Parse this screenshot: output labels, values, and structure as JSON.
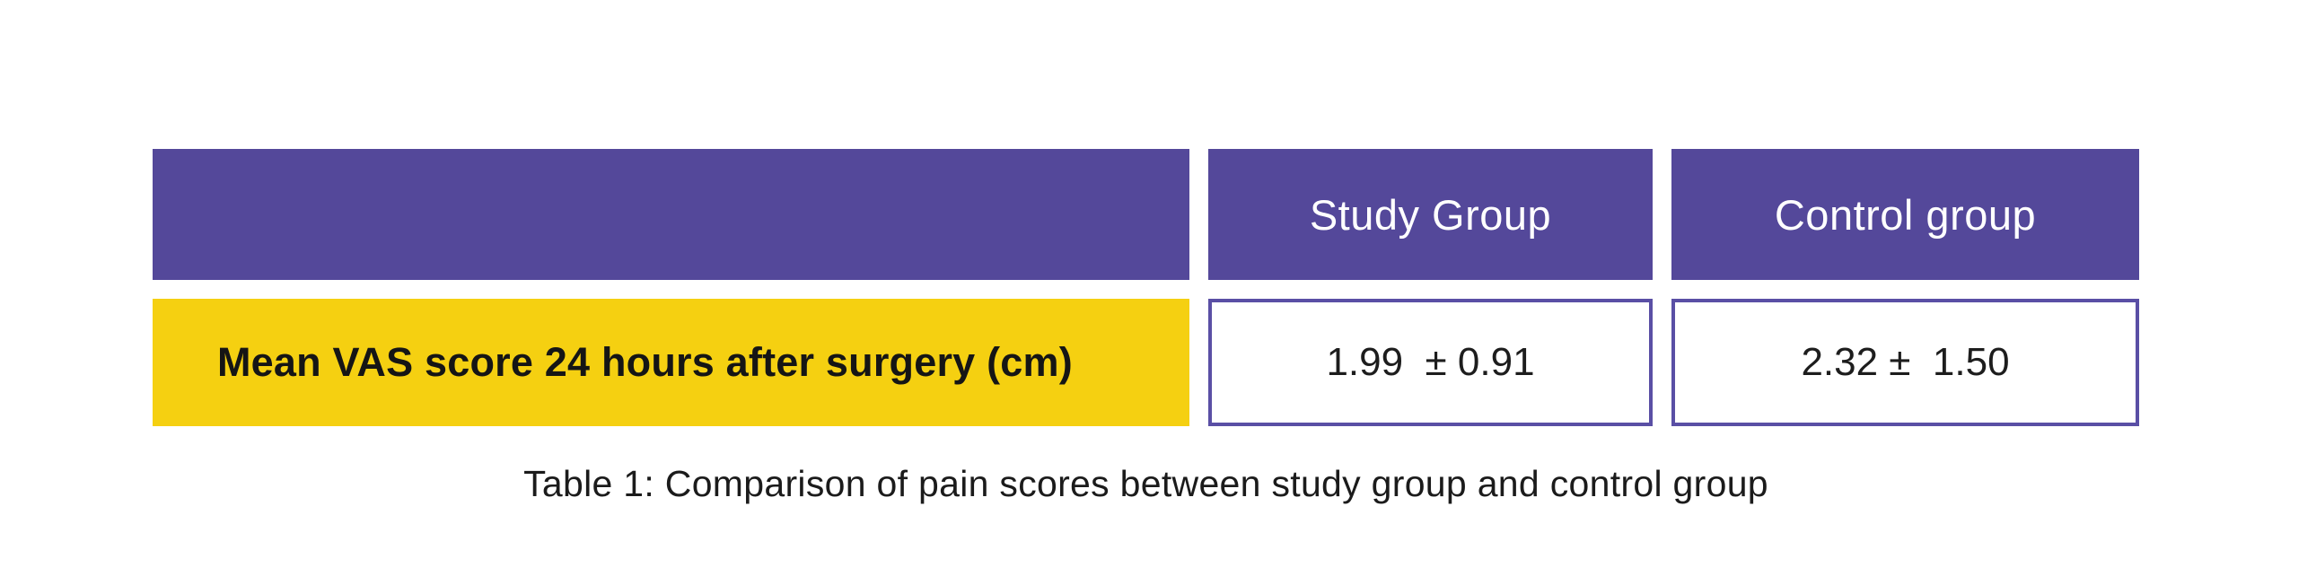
{
  "colors": {
    "header_bg": "#54489A",
    "row_label_bg": "#F5D011",
    "value_cell_border": "#5A4FA5",
    "header_text": "#FFFFFF",
    "body_text": "#1D1D1D",
    "page_bg": "#FFFFFF"
  },
  "table": {
    "header": {
      "col1": "",
      "col2": "Study Group",
      "col3": "Control group"
    },
    "rows": [
      {
        "label": "Mean VAS score 24 hours after surgery (cm)",
        "study_value": "1.99  ± 0.91",
        "control_value": "2.32 ±  1.50"
      }
    ]
  },
  "caption": "Table 1: Comparison of pain scores between study group and control group",
  "chart_data": {
    "type": "table",
    "title": "Table 1: Comparison of pain scores between study group and control group",
    "columns": [
      "",
      "Study Group",
      "Control group"
    ],
    "rows": [
      [
        "Mean VAS score 24 hours after surgery (cm)",
        "1.99 ± 0.91",
        "2.32 ± 1.50"
      ]
    ],
    "values": {
      "study_group": {
        "mean": 1.99,
        "sd": 0.91
      },
      "control_group": {
        "mean": 2.32,
        "sd": 1.5
      }
    },
    "units": "cm"
  }
}
